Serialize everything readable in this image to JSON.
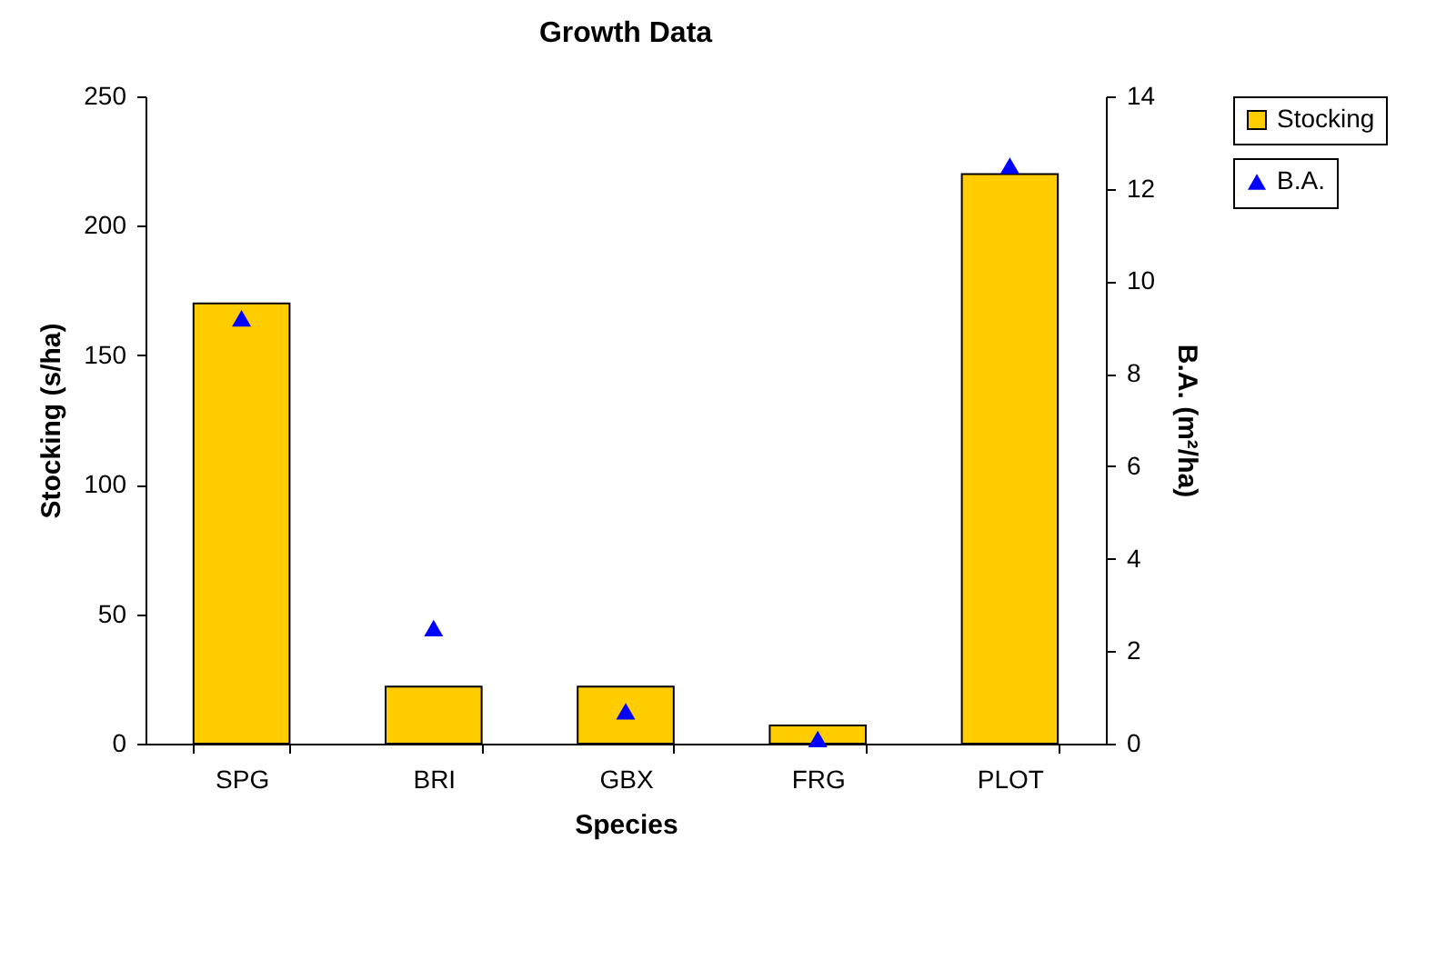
{
  "chart_data": {
    "type": "bar",
    "title": "Growth Data",
    "xlabel": "Species",
    "ylabel": "Stocking (s/ha)",
    "y2label": "B.A. (m²/ha)",
    "categories": [
      "SPG",
      "BRI",
      "GBX",
      "FRG",
      "PLOT"
    ],
    "series": [
      {
        "name": "Stocking",
        "color": "#ffcc00",
        "values": [
          170,
          22,
          22,
          7,
          220
        ]
      },
      {
        "name": "B.A.",
        "type": "scatter",
        "axis": "y2",
        "color": "#0000ff",
        "values": [
          9.2,
          2.5,
          0.7,
          0.1,
          12.5
        ]
      }
    ],
    "ylim": [
      0,
      250
    ],
    "yticks": [
      0,
      50,
      100,
      150,
      200,
      250
    ],
    "y2lim": [
      0,
      14
    ],
    "y2ticks": [
      0,
      2,
      4,
      6,
      8,
      10,
      12,
      14
    ],
    "grid": false,
    "legend": "right",
    "marker": "triangle"
  }
}
